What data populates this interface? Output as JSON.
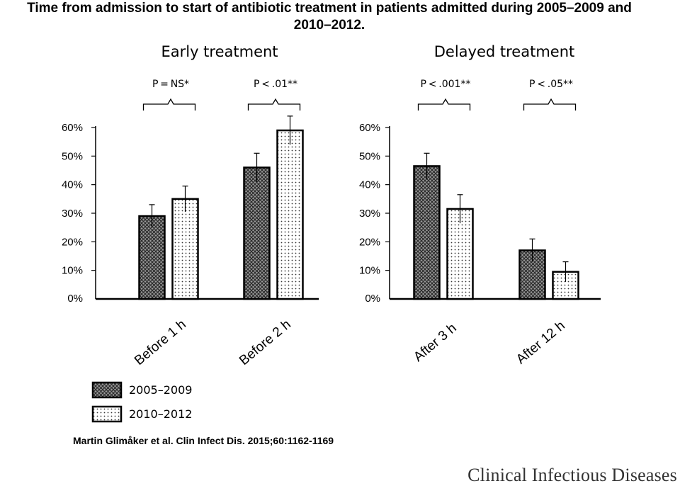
{
  "title_line1": "Time from admission to start of antibiotic treatment in patients admitted during 2005–2009 and",
  "title_line2": "2010–2012.",
  "citation": "Martin Glimåker et al. Clin Infect Dis. 2015;60:1162-1169",
  "journal": "Clinical Infectious Diseases",
  "chart_data": [
    {
      "type": "bar",
      "title": "Early treatment",
      "categories": [
        "Before 1 h",
        "Before 2 h"
      ],
      "ylim": [
        0,
        60
      ],
      "yticks": [
        "0%",
        "10%",
        "20%",
        "30%",
        "40%",
        "50%",
        "60%"
      ],
      "p_values": [
        "P = NS*",
        "P < .01**"
      ],
      "series": [
        {
          "name": "2005–2009",
          "values": [
            29,
            46
          ],
          "errors": [
            4,
            5
          ]
        },
        {
          "name": "2010–2012",
          "values": [
            35,
            59
          ],
          "errors": [
            4.5,
            5
          ]
        }
      ]
    },
    {
      "type": "bar",
      "title": "Delayed treatment",
      "categories": [
        "After 3 h",
        "After 12 h"
      ],
      "ylim": [
        0,
        60
      ],
      "yticks": [
        "0%",
        "10%",
        "20%",
        "30%",
        "40%",
        "50%",
        "60%"
      ],
      "p_values": [
        "P < .001**",
        "P < .05**"
      ],
      "series": [
        {
          "name": "2005–2009",
          "values": [
            46.5,
            17
          ],
          "errors": [
            4.5,
            4
          ]
        },
        {
          "name": "2010–2012",
          "values": [
            31.5,
            9.5
          ],
          "errors": [
            5,
            3.5
          ]
        }
      ]
    }
  ],
  "legend": [
    "2005–2009",
    "2010–2012"
  ]
}
